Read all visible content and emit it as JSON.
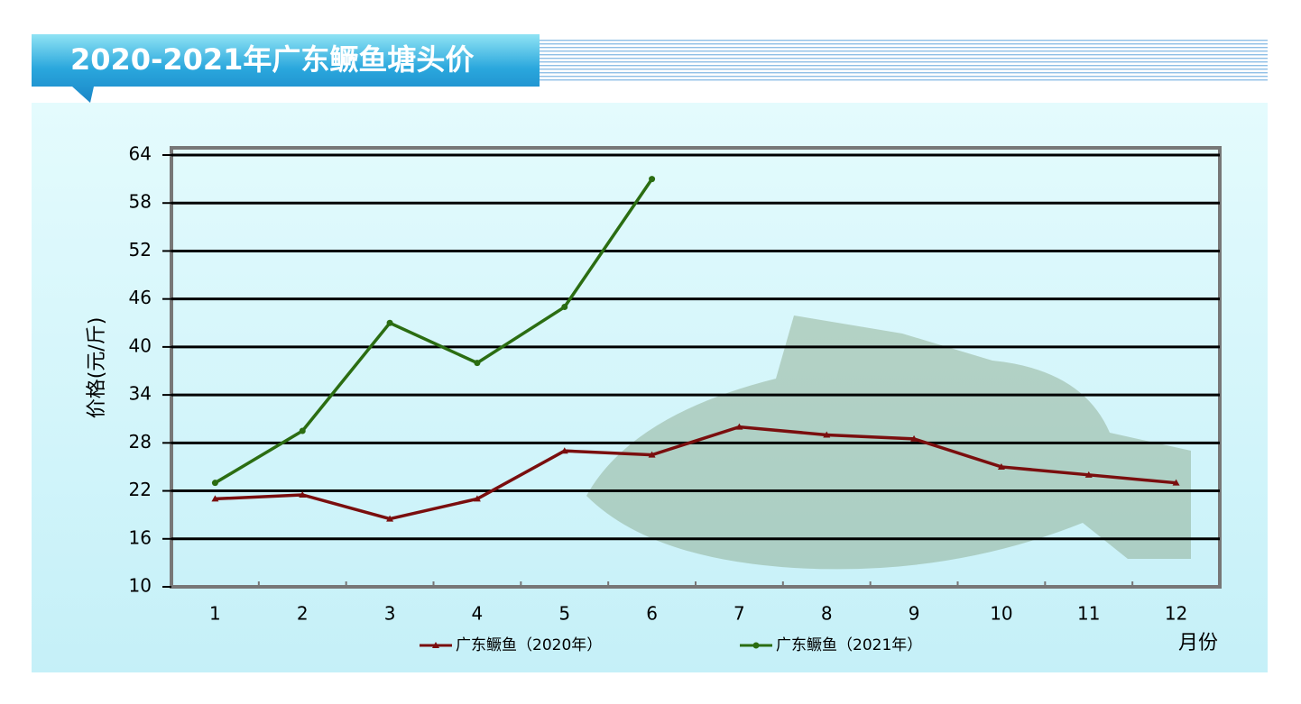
{
  "chart_data": {
    "type": "line",
    "title": "2020-2021年广东鳜鱼塘头价",
    "y_label": "价格(元/斤)",
    "x_label": "月份",
    "categories": [
      "1",
      "2",
      "3",
      "4",
      "5",
      "6",
      "7",
      "8",
      "9",
      "10",
      "11",
      "12"
    ],
    "series": [
      {
        "name": "广东鳜鱼（2020年）",
        "color": "#7a0e0e",
        "marker": "triangle",
        "values": [
          21,
          21.5,
          18.5,
          21,
          27,
          26.5,
          30,
          29,
          28.5,
          25,
          24,
          23
        ]
      },
      {
        "name": "广东鳜鱼（2021年）",
        "color": "#2b6d12",
        "marker": "circle",
        "values": [
          23,
          29.5,
          43,
          38,
          45,
          61,
          null,
          null,
          null,
          null,
          null,
          null
        ]
      }
    ],
    "ylim": [
      10,
      64
    ],
    "yticks": [
      10,
      16,
      22,
      28,
      34,
      40,
      46,
      52,
      58,
      64
    ],
    "grid": true
  }
}
